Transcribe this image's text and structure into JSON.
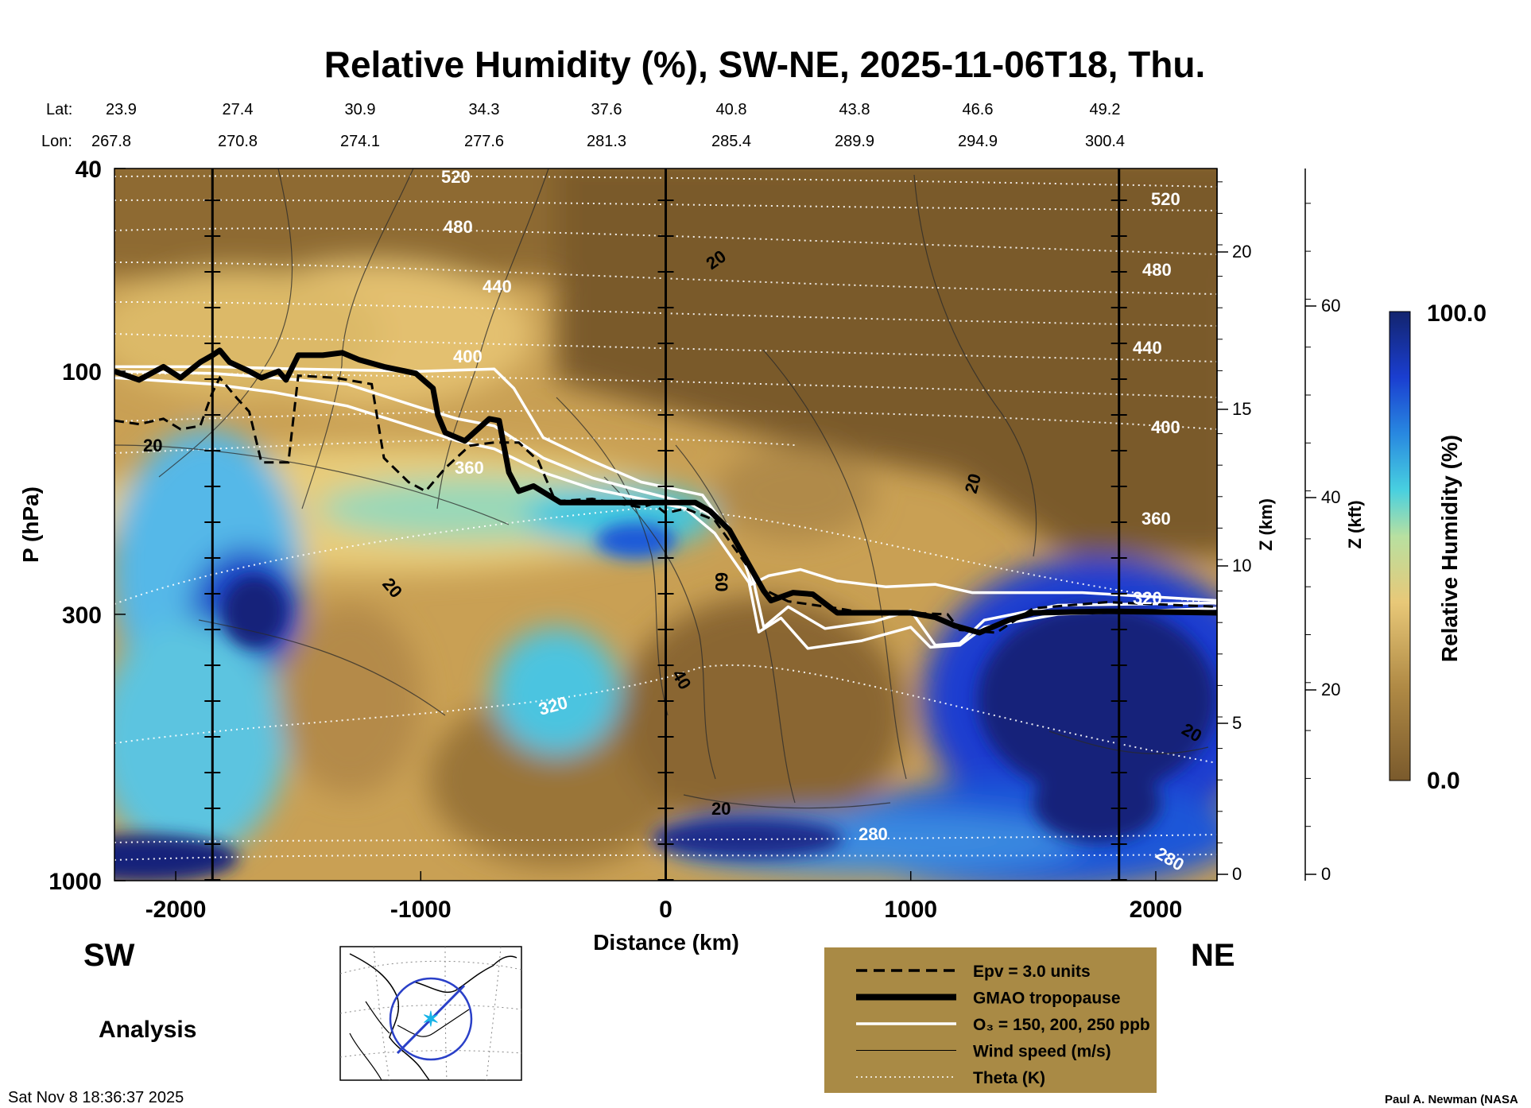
{
  "chart_data": {
    "type": "heatmap",
    "title": "Relative Humidity (%), SW-NE, 2025-11-06T18, Thu.",
    "xlabel": "Distance (km)",
    "ylabel": "P (hPa)",
    "right_axis_1_label": "Z (km)",
    "right_axis_2_label": "Z (kft)",
    "colorbar_label": "Relative Humidity (%)",
    "colorbar_max_label": "100.0",
    "colorbar_min_label": "0.0",
    "colorbar_range": [
      0,
      100
    ],
    "xlim": [
      -2250,
      2250
    ],
    "ylim_hpa": [
      1000,
      40
    ],
    "y_scale": "log",
    "x_ticks": [
      -2000,
      -1000,
      0,
      1000,
      2000
    ],
    "x_tick_labels": [
      "-2000",
      "-1000",
      "0",
      "1000",
      "2000"
    ],
    "y_ticks": [
      40,
      100,
      300,
      1000
    ],
    "y_tick_labels": [
      "40",
      "100",
      "300",
      "1000"
    ],
    "z_km_ticks": [
      "0",
      "5",
      "10",
      "15",
      "20"
    ],
    "z_kft_ticks": [
      "0",
      "20",
      "40",
      "60"
    ],
    "lat_label": "Lat:",
    "lon_label": "Lon:",
    "lat_values": [
      "23.9",
      "27.4",
      "30.9",
      "34.3",
      "37.6",
      "40.8",
      "43.8",
      "46.6",
      "49.2"
    ],
    "lon_values": [
      "267.8",
      "270.8",
      "274.1",
      "277.6",
      "281.3",
      "285.4",
      "289.9",
      "294.9",
      "300.4"
    ],
    "vertical_markers_km": [
      -1850,
      0,
      1850
    ],
    "tropopause": [
      [
        -2250,
        100
      ],
      [
        -2150,
        104
      ],
      [
        -2050,
        98
      ],
      [
        -1980,
        103
      ],
      [
        -1900,
        96
      ],
      [
        -1850,
        93
      ],
      [
        -1820,
        91
      ],
      [
        -1780,
        96
      ],
      [
        -1700,
        100
      ],
      [
        -1650,
        103
      ],
      [
        -1580,
        100
      ],
      [
        -1550,
        104
      ],
      [
        -1500,
        93
      ],
      [
        -1400,
        93
      ],
      [
        -1320,
        92
      ],
      [
        -1250,
        95
      ],
      [
        -1150,
        98
      ],
      [
        -1020,
        101
      ],
      [
        -950,
        108
      ],
      [
        -930,
        122
      ],
      [
        -900,
        132
      ],
      [
        -820,
        137
      ],
      [
        -720,
        124
      ],
      [
        -680,
        125
      ],
      [
        -640,
        158
      ],
      [
        -600,
        172
      ],
      [
        -540,
        168
      ],
      [
        -480,
        175
      ],
      [
        -430,
        181
      ],
      [
        0,
        181
      ],
      [
        120,
        181
      ],
      [
        180,
        188
      ],
      [
        260,
        205
      ],
      [
        300,
        222
      ],
      [
        400,
        270
      ],
      [
        430,
        282
      ],
      [
        520,
        272
      ],
      [
        600,
        274
      ],
      [
        700,
        298
      ],
      [
        1000,
        298
      ],
      [
        1100,
        304
      ],
      [
        1180,
        316
      ],
      [
        1280,
        326
      ],
      [
        1400,
        308
      ],
      [
        1500,
        298
      ],
      [
        1800,
        296
      ],
      [
        2250,
        298
      ]
    ],
    "epv_line": [
      [
        -2250,
        125
      ],
      [
        -2150,
        127
      ],
      [
        -2050,
        124
      ],
      [
        -1980,
        130
      ],
      [
        -1900,
        128
      ],
      [
        -1850,
        110
      ],
      [
        -1820,
        103
      ],
      [
        -1750,
        113
      ],
      [
        -1700,
        120
      ],
      [
        -1650,
        151
      ],
      [
        -1540,
        151
      ],
      [
        -1500,
        102
      ],
      [
        -1350,
        103
      ],
      [
        -1200,
        106
      ],
      [
        -1150,
        148
      ],
      [
        -1050,
        165
      ],
      [
        -980,
        172
      ],
      [
        -900,
        155
      ],
      [
        -800,
        140
      ],
      [
        -700,
        138
      ],
      [
        -600,
        138
      ],
      [
        -520,
        150
      ],
      [
        -450,
        180
      ],
      [
        -300,
        178
      ],
      [
        -100,
        185
      ],
      [
        -50,
        182
      ],
      [
        0,
        190
      ],
      [
        80,
        186
      ],
      [
        200,
        196
      ],
      [
        400,
        268
      ],
      [
        500,
        283
      ],
      [
        700,
        292
      ],
      [
        850,
        300
      ],
      [
        1000,
        298
      ],
      [
        1150,
        300
      ],
      [
        1200,
        322
      ],
      [
        1350,
        326
      ],
      [
        1500,
        292
      ],
      [
        1800,
        284
      ],
      [
        2250,
        290
      ]
    ],
    "ozone_contours": [
      [
        [
          -2250,
          98
        ],
        [
          -1850,
          98
        ],
        [
          -1500,
          99
        ],
        [
          -1000,
          100
        ],
        [
          -700,
          99
        ],
        [
          -620,
          108
        ],
        [
          -500,
          135
        ],
        [
          -300,
          150
        ],
        [
          -100,
          165
        ],
        [
          150,
          175
        ],
        [
          300,
          220
        ],
        [
          350,
          262
        ],
        [
          420,
          252
        ],
        [
          550,
          245
        ],
        [
          700,
          258
        ],
        [
          900,
          265
        ],
        [
          1100,
          262
        ],
        [
          1250,
          272
        ],
        [
          1400,
          272
        ],
        [
          1700,
          272
        ],
        [
          2250,
          282
        ]
      ],
      [
        [
          -2250,
          100
        ],
        [
          -1850,
          101
        ],
        [
          -1600,
          103
        ],
        [
          -1300,
          106
        ],
        [
          -1000,
          118
        ],
        [
          -850,
          124
        ],
        [
          -700,
          128
        ],
        [
          -500,
          148
        ],
        [
          -300,
          162
        ],
        [
          -100,
          172
        ],
        [
          100,
          182
        ],
        [
          250,
          200
        ],
        [
          350,
          248
        ],
        [
          400,
          318
        ],
        [
          500,
          290
        ],
        [
          650,
          320
        ],
        [
          850,
          310
        ],
        [
          1000,
          295
        ],
        [
          1100,
          345
        ],
        [
          1200,
          342
        ],
        [
          1300,
          308
        ],
        [
          1600,
          288
        ],
        [
          2250,
          285
        ]
      ],
      [
        [
          -2250,
          103
        ],
        [
          -1850,
          106
        ],
        [
          -1600,
          110
        ],
        [
          -1300,
          117
        ],
        [
          -1000,
          130
        ],
        [
          -850,
          137
        ],
        [
          -700,
          142
        ],
        [
          -500,
          158
        ],
        [
          -300,
          170
        ],
        [
          -100,
          178
        ],
        [
          80,
          186
        ],
        [
          200,
          208
        ],
        [
          340,
          260
        ],
        [
          380,
          325
        ],
        [
          470,
          305
        ],
        [
          580,
          350
        ],
        [
          800,
          338
        ],
        [
          1000,
          318
        ],
        [
          1080,
          348
        ],
        [
          1200,
          345
        ],
        [
          1300,
          318
        ],
        [
          1600,
          300
        ],
        [
          2250,
          292
        ]
      ]
    ],
    "theta_levels": [
      "280",
      "320",
      "360",
      "400",
      "440",
      "480",
      "520"
    ],
    "wind_speed_labels": [
      "20",
      "20",
      "60",
      "40",
      "20",
      "20",
      "20",
      "20"
    ],
    "map_inset_present": true,
    "legend": [
      {
        "style": "dashed",
        "label": "Epv = 3.0 units"
      },
      {
        "style": "thick",
        "label": "GMAO tropopause"
      },
      {
        "style": "white",
        "label": "O₃ = 150, 200, 250 ppb"
      },
      {
        "style": "thin",
        "label": "Wind speed (m/s)"
      },
      {
        "style": "dotted",
        "label": "Theta (K)"
      }
    ]
  },
  "labels": {
    "sw": "SW",
    "ne": "NE",
    "analysis": "Analysis",
    "timestamp": "Sat Nov  8 18:36:37 2025",
    "credit": "Paul A. Newman (NASA"
  },
  "colors": {
    "dry_brown": "#7a5a2c",
    "tan": "#c69a50",
    "light_tan": "#e2c070",
    "moist_cyan": "#3ec8e0",
    "blue": "#1e5ad8",
    "saturated_navy": "#14237a",
    "legend_box": "#a98a45"
  }
}
